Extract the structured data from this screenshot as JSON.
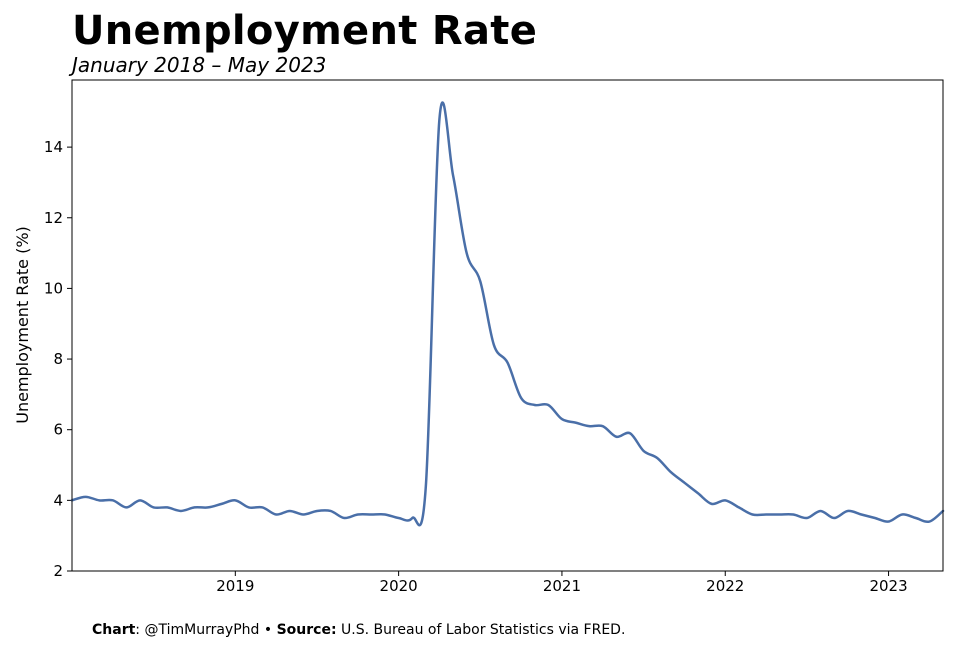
{
  "header": {
    "title": "Unemployment Rate",
    "subtitle": "January 2018 – May 2023"
  },
  "footer": {
    "chart_label": "Chart",
    "chart_credit": ": @TimMurrayPhd",
    "separator": " • ",
    "source_label": "Source:",
    "source_text": " U.S. Bureau of Labor Statistics via FRED."
  },
  "chart_data": {
    "type": "line",
    "title": "Unemployment Rate",
    "subtitle": "January 2018 – May 2023",
    "xlabel": "",
    "ylabel": "Unemployment Rate (%)",
    "xlim": [
      "2018-01",
      "2023-05"
    ],
    "ylim": [
      2,
      15.9
    ],
    "x_ticks": [
      "2019",
      "2020",
      "2021",
      "2022",
      "2023"
    ],
    "y_ticks": [
      2,
      4,
      6,
      8,
      10,
      12,
      14
    ],
    "grid": false,
    "line_color": "#4a6fa8",
    "series": [
      {
        "x": [
          "2018-01",
          "2018-02",
          "2018-03",
          "2018-04",
          "2018-05",
          "2018-06",
          "2018-07",
          "2018-08",
          "2018-09",
          "2018-10",
          "2018-11",
          "2018-12",
          "2019-01",
          "2019-02",
          "2019-03",
          "2019-04",
          "2019-05",
          "2019-06",
          "2019-07",
          "2019-08",
          "2019-09",
          "2019-10",
          "2019-11",
          "2019-12",
          "2020-01",
          "2020-02",
          "2020-03",
          "2020-04",
          "2020-05",
          "2020-06",
          "2020-07",
          "2020-08",
          "2020-09",
          "2020-10",
          "2020-11",
          "2020-12",
          "2021-01",
          "2021-02",
          "2021-03",
          "2021-04",
          "2021-05",
          "2021-06",
          "2021-07",
          "2021-08",
          "2021-09",
          "2021-10",
          "2021-11",
          "2021-12",
          "2022-01",
          "2022-02",
          "2022-03",
          "2022-04",
          "2022-05",
          "2022-06",
          "2022-07",
          "2022-08",
          "2022-09",
          "2022-10",
          "2022-11",
          "2022-12",
          "2023-01",
          "2023-02",
          "2023-03",
          "2023-04",
          "2023-05"
        ],
        "values": [
          4.0,
          4.1,
          4.0,
          4.0,
          3.8,
          4.0,
          3.8,
          3.8,
          3.7,
          3.8,
          3.8,
          3.9,
          4.0,
          3.8,
          3.8,
          3.6,
          3.7,
          3.6,
          3.7,
          3.7,
          3.5,
          3.6,
          3.6,
          3.6,
          3.5,
          3.5,
          4.4,
          14.8,
          13.2,
          11.0,
          10.2,
          8.4,
          7.9,
          6.9,
          6.7,
          6.7,
          6.3,
          6.2,
          6.1,
          6.1,
          5.8,
          5.9,
          5.4,
          5.2,
          4.8,
          4.5,
          4.2,
          3.9,
          4.0,
          3.8,
          3.6,
          3.6,
          3.6,
          3.6,
          3.5,
          3.7,
          3.5,
          3.7,
          3.6,
          3.5,
          3.4,
          3.6,
          3.5,
          3.4,
          3.7
        ]
      }
    ]
  }
}
